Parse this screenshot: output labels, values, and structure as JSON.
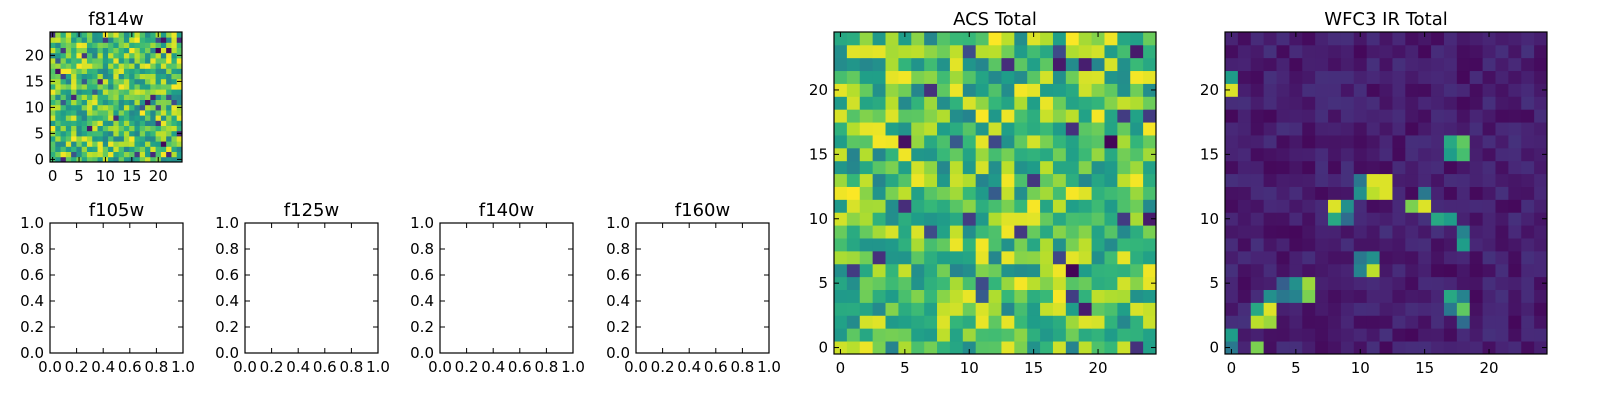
{
  "chart_data": [
    {
      "type": "heatmap",
      "title": "f814w",
      "grid_size": 25,
      "colormap": "viridis",
      "xlim": [
        -0.5,
        24.5
      ],
      "ylim": [
        -0.5,
        24.5
      ],
      "xticks": [
        0,
        5,
        10,
        15,
        20
      ],
      "yticks": [
        0,
        5,
        10,
        15,
        20
      ],
      "pattern": "uniform noise, mostly mid-to-high values"
    },
    {
      "type": "empty",
      "title": "f105w",
      "xlim": [
        0,
        1
      ],
      "ylim": [
        0,
        1
      ],
      "xticks": [
        "0.0",
        "0.2",
        "0.4",
        "0.6",
        "0.8",
        "1.0"
      ],
      "yticks": [
        "0.0",
        "0.2",
        "0.4",
        "0.6",
        "0.8",
        "1.0"
      ]
    },
    {
      "type": "empty",
      "title": "f125w",
      "xlim": [
        0,
        1
      ],
      "ylim": [
        0,
        1
      ],
      "xticks": [
        "0.0",
        "0.2",
        "0.4",
        "0.6",
        "0.8",
        "1.0"
      ],
      "yticks": [
        "0.0",
        "0.2",
        "0.4",
        "0.6",
        "0.8",
        "1.0"
      ]
    },
    {
      "type": "empty",
      "title": "f140w",
      "xlim": [
        0,
        1
      ],
      "ylim": [
        0,
        1
      ],
      "xticks": [
        "0.0",
        "0.2",
        "0.4",
        "0.6",
        "0.8",
        "1.0"
      ],
      "yticks": [
        "0.0",
        "0.2",
        "0.4",
        "0.6",
        "0.8",
        "1.0"
      ]
    },
    {
      "type": "empty",
      "title": "f160w",
      "xlim": [
        0,
        1
      ],
      "ylim": [
        0,
        1
      ],
      "xticks": [
        "0.0",
        "0.2",
        "0.4",
        "0.6",
        "0.8",
        "1.0"
      ],
      "yticks": [
        "0.0",
        "0.2",
        "0.4",
        "0.6",
        "0.8",
        "1.0"
      ]
    },
    {
      "type": "heatmap",
      "title": "ACS Total",
      "grid_size": 25,
      "colormap": "viridis",
      "xlim": [
        -0.5,
        24.5
      ],
      "ylim": [
        -0.5,
        24.5
      ],
      "xticks": [
        0,
        5,
        10,
        15,
        20
      ],
      "yticks": [
        0,
        5,
        10,
        15,
        20
      ],
      "pattern": "uniform noise, mostly mid-to-high values"
    },
    {
      "type": "heatmap",
      "title": "WFC3 IR Total",
      "grid_size": 25,
      "colormap": "viridis",
      "xlim": [
        -0.5,
        24.5
      ],
      "ylim": [
        -0.5,
        24.5
      ],
      "xticks": [
        0,
        5,
        10,
        15,
        20
      ],
      "yticks": [
        0,
        5,
        10,
        15,
        20
      ],
      "pattern": "dark background with bright clumps",
      "hot_pixels": [
        {
          "x": 0,
          "y": 21,
          "v": 0.55
        },
        {
          "x": 0,
          "y": 20,
          "v": 0.95
        },
        {
          "x": 0,
          "y": 1,
          "v": 0.55
        },
        {
          "x": 0,
          "y": 0,
          "v": 0.4
        },
        {
          "x": 2,
          "y": 0,
          "v": 0.8
        },
        {
          "x": 2,
          "y": 2,
          "v": 0.9
        },
        {
          "x": 2,
          "y": 3,
          "v": 0.6
        },
        {
          "x": 3,
          "y": 2,
          "v": 0.85
        },
        {
          "x": 3,
          "y": 3,
          "v": 0.95
        },
        {
          "x": 3,
          "y": 4,
          "v": 0.5
        },
        {
          "x": 4,
          "y": 4,
          "v": 0.4
        },
        {
          "x": 4,
          "y": 5,
          "v": 0.3
        },
        {
          "x": 5,
          "y": 4,
          "v": 0.45
        },
        {
          "x": 5,
          "y": 5,
          "v": 0.5
        },
        {
          "x": 6,
          "y": 4,
          "v": 0.8
        },
        {
          "x": 6,
          "y": 5,
          "v": 0.85
        },
        {
          "x": 8,
          "y": 11,
          "v": 0.95
        },
        {
          "x": 8,
          "y": 10,
          "v": 0.6
        },
        {
          "x": 9,
          "y": 11,
          "v": 0.5
        },
        {
          "x": 9,
          "y": 10,
          "v": 0.35
        },
        {
          "x": 10,
          "y": 13,
          "v": 0.4
        },
        {
          "x": 10,
          "y": 12,
          "v": 0.5
        },
        {
          "x": 11,
          "y": 13,
          "v": 0.95
        },
        {
          "x": 11,
          "y": 12,
          "v": 0.9
        },
        {
          "x": 12,
          "y": 13,
          "v": 0.95
        },
        {
          "x": 12,
          "y": 12,
          "v": 0.95
        },
        {
          "x": 10,
          "y": 7,
          "v": 0.4
        },
        {
          "x": 10,
          "y": 6,
          "v": 0.45
        },
        {
          "x": 11,
          "y": 7,
          "v": 0.5
        },
        {
          "x": 11,
          "y": 6,
          "v": 0.9
        },
        {
          "x": 14,
          "y": 11,
          "v": 0.8
        },
        {
          "x": 15,
          "y": 11,
          "v": 0.95
        },
        {
          "x": 15,
          "y": 12,
          "v": 0.4
        },
        {
          "x": 16,
          "y": 10,
          "v": 0.6
        },
        {
          "x": 17,
          "y": 10,
          "v": 0.55
        },
        {
          "x": 18,
          "y": 9,
          "v": 0.45
        },
        {
          "x": 18,
          "y": 8,
          "v": 0.55
        },
        {
          "x": 17,
          "y": 16,
          "v": 0.6
        },
        {
          "x": 17,
          "y": 15,
          "v": 0.55
        },
        {
          "x": 18,
          "y": 16,
          "v": 0.75
        },
        {
          "x": 18,
          "y": 15,
          "v": 0.7
        },
        {
          "x": 17,
          "y": 4,
          "v": 0.6
        },
        {
          "x": 17,
          "y": 3,
          "v": 0.4
        },
        {
          "x": 18,
          "y": 4,
          "v": 0.45
        },
        {
          "x": 18,
          "y": 3,
          "v": 0.75
        },
        {
          "x": 18,
          "y": 2,
          "v": 0.35
        }
      ]
    }
  ]
}
